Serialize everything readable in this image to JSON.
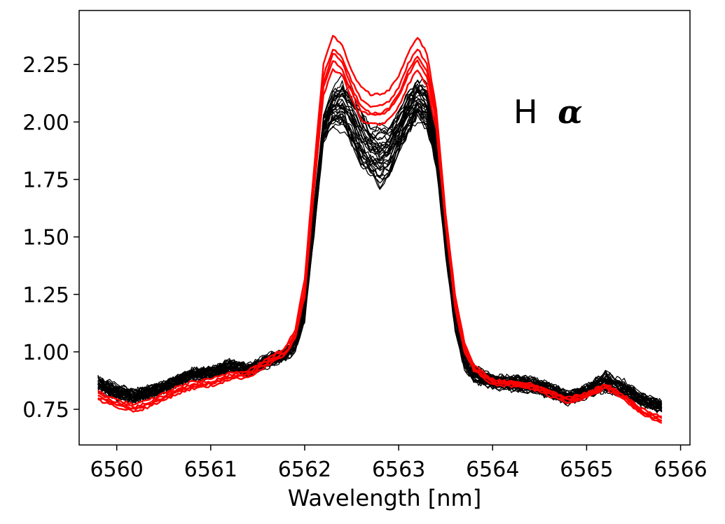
{
  "chart_data": {
    "type": "line",
    "title": "",
    "xlabel": "Wavelength [nm]",
    "ylabel": "",
    "xlim": [
      6559.6,
      6566.1
    ],
    "ylim": [
      0.595,
      2.485
    ],
    "xticks": [
      6560,
      6561,
      6562,
      6563,
      6564,
      6565,
      6566
    ],
    "xtick_labels": [
      "6560",
      "6561",
      "6562",
      "6563",
      "6564",
      "6565",
      "6566"
    ],
    "yticks": [
      0.75,
      1.0,
      1.25,
      1.5,
      1.75,
      2.0,
      2.25
    ],
    "ytick_labels": [
      "0.75",
      "1.00",
      "1.25",
      "1.50",
      "1.75",
      "2.00",
      "2.25"
    ],
    "grid": false,
    "legend": "none",
    "annotation": {
      "prefix": "H",
      "symbol": "α"
    },
    "colors": {
      "black_series": "#000000",
      "red_series": "#ff0000"
    },
    "x": [
      6559.8,
      6560.0,
      6560.2,
      6560.4,
      6560.6,
      6560.8,
      6561.0,
      6561.2,
      6561.4,
      6561.6,
      6561.8,
      6561.9,
      6562.0,
      6562.1,
      6562.2,
      6562.3,
      6562.4,
      6562.5,
      6562.6,
      6562.7,
      6562.8,
      6562.9,
      6563.0,
      6563.1,
      6563.2,
      6563.3,
      6563.4,
      6563.5,
      6563.6,
      6563.7,
      6563.8,
      6564.0,
      6564.2,
      6564.4,
      6564.6,
      6564.8,
      6565.0,
      6565.2,
      6565.4,
      6565.6,
      6565.8
    ],
    "series_black_envelope": {
      "upper": [
        0.9,
        0.86,
        0.84,
        0.86,
        0.89,
        0.93,
        0.94,
        0.97,
        0.95,
        0.99,
        1.02,
        1.08,
        1.25,
        1.65,
        2.05,
        2.15,
        2.22,
        2.18,
        2.08,
        2.02,
        2.0,
        2.02,
        2.08,
        2.16,
        2.22,
        2.18,
        2.0,
        1.55,
        1.25,
        1.03,
        0.95,
        0.9,
        0.9,
        0.9,
        0.87,
        0.83,
        0.86,
        0.93,
        0.88,
        0.82,
        0.79
      ],
      "lower": [
        0.82,
        0.79,
        0.77,
        0.8,
        0.84,
        0.87,
        0.88,
        0.91,
        0.89,
        0.93,
        0.96,
        0.99,
        1.12,
        1.5,
        1.9,
        1.97,
        1.93,
        1.85,
        1.77,
        1.72,
        1.7,
        1.73,
        1.82,
        1.92,
        1.98,
        1.94,
        1.78,
        1.4,
        1.08,
        0.92,
        0.86,
        0.84,
        0.83,
        0.82,
        0.8,
        0.77,
        0.79,
        0.81,
        0.79,
        0.76,
        0.73
      ]
    },
    "series": [
      {
        "color": "red",
        "values": [
          0.82,
          0.78,
          0.76,
          0.79,
          0.83,
          0.86,
          0.87,
          0.9,
          0.91,
          0.96,
          1.02,
          1.1,
          1.32,
          1.8,
          2.25,
          2.38,
          2.33,
          2.22,
          2.15,
          2.12,
          2.12,
          2.14,
          2.2,
          2.3,
          2.37,
          2.3,
          2.06,
          1.6,
          1.25,
          1.04,
          0.94,
          0.88,
          0.87,
          0.86,
          0.83,
          0.79,
          0.82,
          0.86,
          0.81,
          0.74,
          0.7
        ]
      },
      {
        "color": "red",
        "values": [
          0.8,
          0.77,
          0.75,
          0.78,
          0.82,
          0.85,
          0.86,
          0.89,
          0.9,
          0.95,
          1.0,
          1.07,
          1.28,
          1.75,
          2.2,
          2.32,
          2.28,
          2.18,
          2.1,
          2.07,
          2.07,
          2.09,
          2.15,
          2.25,
          2.32,
          2.25,
          2.03,
          1.58,
          1.22,
          1.02,
          0.93,
          0.87,
          0.86,
          0.85,
          0.82,
          0.78,
          0.81,
          0.85,
          0.8,
          0.73,
          0.69
        ]
      },
      {
        "color": "red",
        "values": [
          0.79,
          0.76,
          0.74,
          0.77,
          0.81,
          0.84,
          0.85,
          0.88,
          0.89,
          0.94,
          0.99,
          1.06,
          1.25,
          1.72,
          2.15,
          2.27,
          2.23,
          2.13,
          2.05,
          2.03,
          2.03,
          2.05,
          2.11,
          2.2,
          2.27,
          2.2,
          2.0,
          1.56,
          1.2,
          1.01,
          0.92,
          0.86,
          0.85,
          0.84,
          0.81,
          0.78,
          0.8,
          0.84,
          0.79,
          0.73,
          0.7
        ]
      },
      {
        "color": "red",
        "values": [
          0.81,
          0.77,
          0.75,
          0.78,
          0.82,
          0.85,
          0.86,
          0.89,
          0.9,
          0.95,
          1.0,
          1.06,
          1.24,
          1.7,
          2.12,
          2.23,
          2.2,
          2.1,
          2.01,
          1.99,
          1.99,
          2.01,
          2.07,
          2.16,
          2.23,
          2.16,
          1.97,
          1.55,
          1.19,
          1.0,
          0.92,
          0.87,
          0.86,
          0.85,
          0.82,
          0.79,
          0.81,
          0.85,
          0.8,
          0.74,
          0.71
        ]
      },
      {
        "color": "red",
        "values": [
          0.83,
          0.79,
          0.77,
          0.8,
          0.84,
          0.87,
          0.88,
          0.91,
          0.92,
          0.97,
          1.02,
          1.08,
          1.27,
          1.73,
          2.17,
          2.3,
          2.26,
          2.15,
          2.07,
          2.04,
          2.04,
          2.06,
          2.12,
          2.22,
          2.29,
          2.22,
          2.01,
          1.57,
          1.21,
          1.02,
          0.93,
          0.88,
          0.87,
          0.86,
          0.83,
          0.8,
          0.82,
          0.86,
          0.81,
          0.75,
          0.72
        ]
      }
    ]
  }
}
